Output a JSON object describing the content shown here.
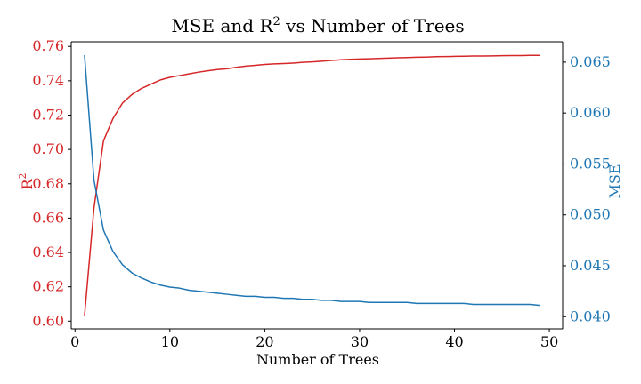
{
  "chart_data": {
    "type": "line",
    "title_main": "MSE and R",
    "title_sup": "2",
    "title_rest": " vs Number of Trees",
    "xlabel": "Number of Trees",
    "ylabel_left_main": "R",
    "ylabel_left_sup": "2",
    "ylabel_right": "MSE",
    "colors": {
      "r2": "#d62728",
      "mse": "#1f77b4",
      "axis": "#000000"
    },
    "xlim": [
      -0.4,
      51.4
    ],
    "ylim_left": [
      0.5955,
      0.7627
    ],
    "ylim_right": [
      0.0388,
      0.067
    ],
    "x_ticks": [
      0,
      10,
      20,
      30,
      40,
      50
    ],
    "x_tick_labels": [
      "0",
      "10",
      "20",
      "30",
      "40",
      "50"
    ],
    "y_left_ticks": [
      0.6,
      0.62,
      0.64,
      0.66,
      0.68,
      0.7,
      0.72,
      0.74,
      0.76
    ],
    "y_left_tick_labels": [
      "0.60",
      "0.62",
      "0.64",
      "0.66",
      "0.68",
      "0.70",
      "0.72",
      "0.74",
      "0.76"
    ],
    "y_right_ticks": [
      0.04,
      0.045,
      0.05,
      0.055,
      0.06,
      0.065
    ],
    "y_right_tick_labels": [
      "0.040",
      "0.045",
      "0.050",
      "0.055",
      "0.060",
      "0.065"
    ],
    "x": [
      1,
      2,
      3,
      4,
      5,
      6,
      7,
      8,
      9,
      10,
      11,
      12,
      13,
      14,
      15,
      16,
      17,
      18,
      19,
      20,
      21,
      22,
      23,
      24,
      25,
      26,
      27,
      28,
      29,
      30,
      31,
      32,
      33,
      34,
      35,
      36,
      37,
      38,
      39,
      40,
      41,
      42,
      43,
      44,
      45,
      46,
      47,
      48,
      49
    ],
    "series": [
      {
        "axis": "left",
        "values": [
          0.603,
          0.666,
          0.705,
          0.718,
          0.727,
          0.732,
          0.7355,
          0.738,
          0.7405,
          0.742,
          0.743,
          0.744,
          0.745,
          0.7458,
          0.7465,
          0.747,
          0.7478,
          0.7485,
          0.749,
          0.7495,
          0.7498,
          0.75,
          0.7503,
          0.7507,
          0.751,
          0.7514,
          0.7518,
          0.7522,
          0.7525,
          0.7527,
          0.7528,
          0.753,
          0.7532,
          0.7534,
          0.7535,
          0.7537,
          0.7538,
          0.754,
          0.7541,
          0.7542,
          0.7543,
          0.7544,
          0.7544,
          0.7545,
          0.7546,
          0.7547,
          0.7547,
          0.7548,
          0.7548
        ]
      },
      {
        "axis": "right",
        "values": [
          0.0657,
          0.0534,
          0.0485,
          0.0464,
          0.0451,
          0.0443,
          0.0438,
          0.0434,
          0.0431,
          0.0429,
          0.0428,
          0.0426,
          0.0425,
          0.0424,
          0.0423,
          0.0422,
          0.0421,
          0.042,
          0.042,
          0.0419,
          0.0419,
          0.0418,
          0.0418,
          0.0417,
          0.0417,
          0.0416,
          0.0416,
          0.0415,
          0.0415,
          0.0415,
          0.0414,
          0.0414,
          0.0414,
          0.0414,
          0.0414,
          0.0413,
          0.0413,
          0.0413,
          0.0413,
          0.0413,
          0.0413,
          0.0412,
          0.0412,
          0.0412,
          0.0412,
          0.0412,
          0.0412,
          0.0412,
          0.0411
        ]
      }
    ]
  }
}
